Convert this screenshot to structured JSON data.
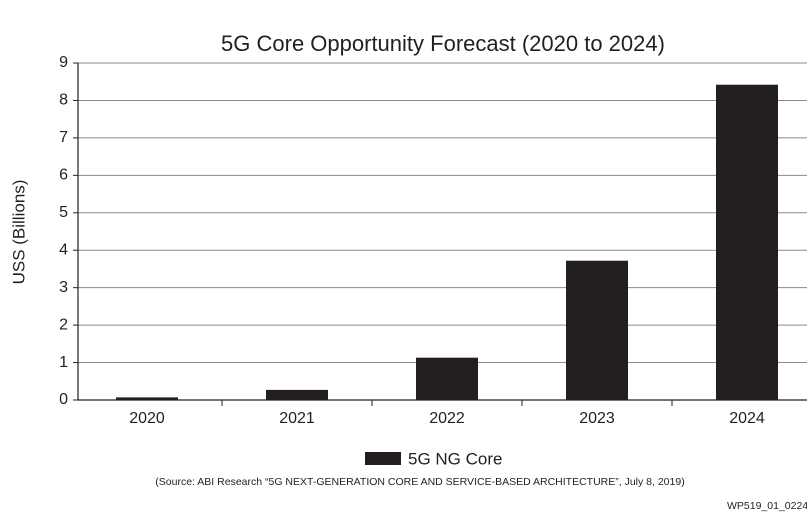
{
  "chart_data": {
    "type": "bar",
    "title": "5G Core Opportunity Forecast (2020 to 2024)",
    "y_label": "USS (Billions)",
    "categories": [
      "2020",
      "2021",
      "2022",
      "2023",
      "2024"
    ],
    "series": [
      {
        "name": "5G NG Core",
        "color": "#231f20",
        "values": [
          0.07,
          0.27,
          1.13,
          3.72,
          8.42
        ]
      }
    ],
    "ylim": [
      0,
      9
    ],
    "yticks": [
      0,
      1,
      2,
      3,
      4,
      5,
      6,
      7,
      8,
      9
    ],
    "grid": true,
    "legend": "bottom",
    "source": "(Source: ABI Research “5G NEXT-GENERATION CORE AND SERVICE-BASED ARCHITECTURE”, July 8, 2019)",
    "footer": "WP519_01_02242"
  }
}
